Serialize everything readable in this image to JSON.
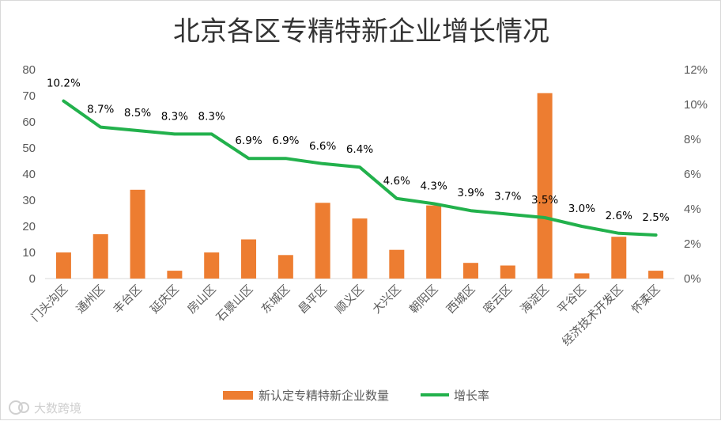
{
  "chart_data": {
    "type": "bar+line",
    "title": "北京各区专精特新企业增长情况",
    "categories": [
      "门头沟区",
      "通州区",
      "丰台区",
      "延庆区",
      "房山区",
      "石景山区",
      "东城区",
      "昌平区",
      "顺义区",
      "大兴区",
      "朝阳区",
      "西城区",
      "密云区",
      "海淀区",
      "平谷区",
      "经济技术开发区",
      "怀柔区"
    ],
    "series": [
      {
        "name": "新认定专精特新企业数量",
        "type": "bar",
        "axis": "left",
        "color": "#ED7D31",
        "values": [
          10,
          17,
          34,
          3,
          10,
          15,
          9,
          29,
          23,
          11,
          28,
          6,
          5,
          71,
          2,
          16,
          3
        ]
      },
      {
        "name": "增长率",
        "type": "line",
        "axis": "right",
        "color": "#22B14C",
        "values": [
          10.2,
          8.7,
          8.5,
          8.3,
          8.3,
          6.9,
          6.9,
          6.6,
          6.4,
          4.6,
          4.3,
          3.9,
          3.7,
          3.5,
          3.0,
          2.6,
          2.5
        ],
        "data_labels": [
          "10.2%",
          "8.7%",
          "8.5%",
          "8.3%",
          "8.3%",
          "6.9%",
          "6.9%",
          "6.6%",
          "6.4%",
          "4.6%",
          "4.3%",
          "3.9%",
          "3.7%",
          "3.5%",
          "3.0%",
          "2.6%",
          "2.5%"
        ]
      }
    ],
    "y_left": {
      "min": 0,
      "max": 80,
      "ticks": [
        "0",
        "10",
        "20",
        "30",
        "40",
        "50",
        "60",
        "70",
        "80"
      ]
    },
    "y_right": {
      "min": 0,
      "max": 12,
      "ticks": [
        "0%",
        "2%",
        "4%",
        "6%",
        "8%",
        "10%",
        "12%"
      ]
    },
    "legend": {
      "position": "bottom",
      "items": [
        "新认定专精特新企业数量",
        "增长率"
      ]
    },
    "grid": false
  },
  "watermark": "大数跨境"
}
